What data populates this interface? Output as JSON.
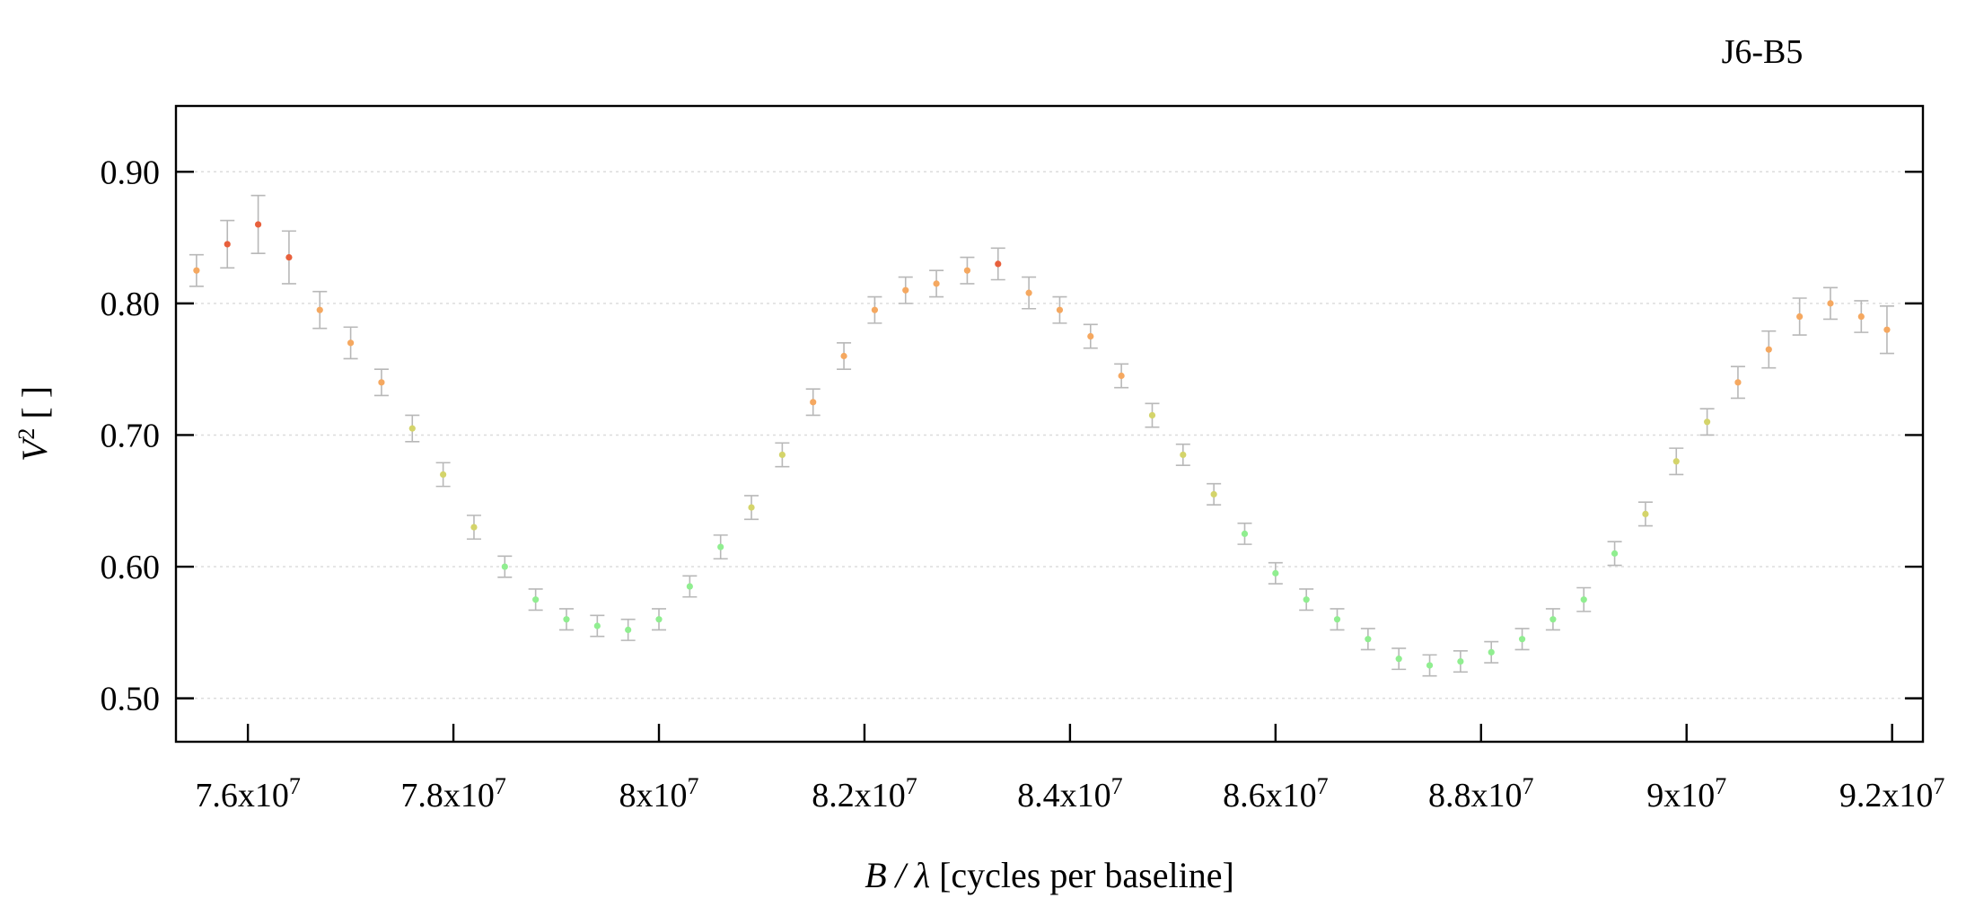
{
  "chart_data": {
    "type": "scatter",
    "title": "J6-B5",
    "xlabel_var": "B / λ",
    "xlabel_rest": " [cycles per baseline]",
    "ylabel_base": "V",
    "ylabel_sup": "2",
    "ylabel_rest": " [ ]",
    "xlim": [
      75300000,
      92300000
    ],
    "ylim": [
      0.467,
      0.95
    ],
    "grid": true,
    "x_ticks": [
      {
        "value": 76000000,
        "mant": "7.6x10",
        "exp": "7"
      },
      {
        "value": 78000000,
        "mant": "7.8x10",
        "exp": "7"
      },
      {
        "value": 80000000,
        "mant": "8x10",
        "exp": "7"
      },
      {
        "value": 82000000,
        "mant": "8.2x10",
        "exp": "7"
      },
      {
        "value": 84000000,
        "mant": "8.4x10",
        "exp": "7"
      },
      {
        "value": 86000000,
        "mant": "8.6x10",
        "exp": "7"
      },
      {
        "value": 88000000,
        "mant": "8.8x10",
        "exp": "7"
      },
      {
        "value": 90000000,
        "mant": "9x10",
        "exp": "7"
      },
      {
        "value": 92000000,
        "mant": "9.2x10",
        "exp": "7"
      }
    ],
    "y_ticks": [
      {
        "value": 0.5,
        "label": "0.50"
      },
      {
        "value": 0.6,
        "label": "0.60"
      },
      {
        "value": 0.7,
        "label": "0.70"
      },
      {
        "value": 0.8,
        "label": "0.80"
      },
      {
        "value": 0.9,
        "label": "0.90"
      }
    ],
    "colors": {
      "errorbar": "#b8b8b8",
      "low": "#90ee90",
      "mid": "#d4d46a",
      "high": "#f5a860",
      "top": "#e8603c",
      "grid": "#dddddd",
      "axis": "#000000"
    },
    "series": [
      {
        "x": [
          75500000,
          75800000,
          76100000,
          76400000,
          76700000,
          77000000,
          77300000,
          77600000,
          77900000,
          78200000,
          78500000,
          78800000,
          79100000,
          79400000,
          79700000,
          80000000,
          80300000,
          80600000,
          80900000,
          81200000,
          81500000,
          81800000,
          82100000,
          82400000,
          82700000,
          83000000,
          83300000,
          83600000,
          83900000,
          84200000,
          84500000,
          84800000,
          85100000,
          85400000,
          85700000,
          86000000,
          86300000,
          86600000,
          86900000,
          87200000,
          87500000,
          87800000,
          88100000,
          88400000,
          88700000,
          89000000,
          89300000,
          89600000,
          89900000,
          90200000,
          90500000,
          90800000,
          91100000,
          91400000,
          91700000,
          91950000
        ],
        "y": [
          0.825,
          0.845,
          0.86,
          0.835,
          0.795,
          0.77,
          0.74,
          0.705,
          0.67,
          0.63,
          0.6,
          0.575,
          0.56,
          0.555,
          0.552,
          0.56,
          0.585,
          0.615,
          0.645,
          0.685,
          0.725,
          0.76,
          0.795,
          0.81,
          0.815,
          0.825,
          0.83,
          0.808,
          0.795,
          0.775,
          0.745,
          0.715,
          0.685,
          0.655,
          0.625,
          0.595,
          0.575,
          0.56,
          0.545,
          0.53,
          0.525,
          0.528,
          0.535,
          0.545,
          0.56,
          0.575,
          0.61,
          0.64,
          0.68,
          0.71,
          0.74,
          0.765,
          0.79,
          0.8,
          0.79,
          0.78
        ],
        "err": [
          0.012,
          0.018,
          0.022,
          0.02,
          0.014,
          0.012,
          0.01,
          0.01,
          0.009,
          0.009,
          0.008,
          0.008,
          0.008,
          0.008,
          0.008,
          0.008,
          0.008,
          0.009,
          0.009,
          0.009,
          0.01,
          0.01,
          0.01,
          0.01,
          0.01,
          0.01,
          0.012,
          0.012,
          0.01,
          0.009,
          0.009,
          0.009,
          0.008,
          0.008,
          0.008,
          0.008,
          0.008,
          0.008,
          0.008,
          0.008,
          0.008,
          0.008,
          0.008,
          0.008,
          0.008,
          0.009,
          0.009,
          0.009,
          0.01,
          0.01,
          0.012,
          0.014,
          0.014,
          0.012,
          0.012,
          0.018
        ]
      }
    ]
  }
}
